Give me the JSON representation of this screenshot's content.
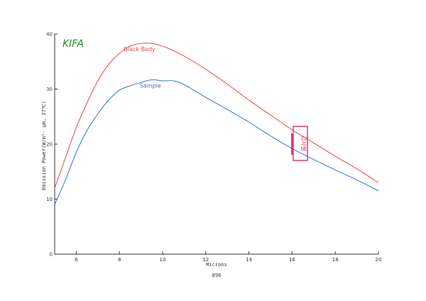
{
  "logo_text": "KIFA",
  "stamp_text": "검사필",
  "chart_data": {
    "type": "line",
    "xlabel": "Microns",
    "ylabel": "Emission Power(W/m²· μm, 37℃)",
    "footer_label": "898",
    "xlim": [
      5,
      20
    ],
    "ylim": [
      0,
      40
    ],
    "x_ticks": [
      6,
      8,
      10,
      12,
      14,
      16,
      18,
      20
    ],
    "x_tick_labels": [
      "6",
      "8",
      "10",
      "12",
      "14",
      "16",
      "18",
      "20"
    ],
    "y_ticks": [
      0,
      10,
      20,
      30,
      40
    ],
    "y_tick_labels": [
      "0",
      "10",
      "20",
      "30",
      "40"
    ],
    "grid": false,
    "series": [
      {
        "name": "Black Body",
        "color": "#e8454a",
        "x": [
          5,
          5.5,
          6,
          6.5,
          7,
          7.5,
          8,
          8.5,
          9,
          9.5,
          10,
          10.5,
          11,
          12,
          13,
          14,
          15,
          16,
          17,
          18,
          19,
          20
        ],
        "y": [
          12,
          17.5,
          23,
          27.5,
          31.5,
          34.5,
          36.5,
          37.8,
          38.3,
          38.3,
          37.8,
          37.0,
          36.0,
          33.6,
          30.9,
          28.0,
          25.3,
          22.6,
          20.2,
          17.8,
          15.5,
          13.0
        ]
      },
      {
        "name": "Sample",
        "color": "#3b6fd6",
        "x": [
          5,
          5.5,
          6,
          6.5,
          7,
          7.5,
          8,
          8.5,
          9,
          9.5,
          10,
          10.5,
          11,
          12,
          13,
          14,
          15,
          16,
          17,
          18,
          19,
          20
        ],
        "y": [
          9,
          13.5,
          18.5,
          22.5,
          25.5,
          28,
          29.8,
          30.6,
          31.2,
          31.7,
          31.5,
          31.5,
          30.8,
          28.5,
          26.3,
          24.0,
          21.5,
          19.2,
          17.2,
          15.3,
          13.5,
          11.5
        ]
      }
    ]
  }
}
